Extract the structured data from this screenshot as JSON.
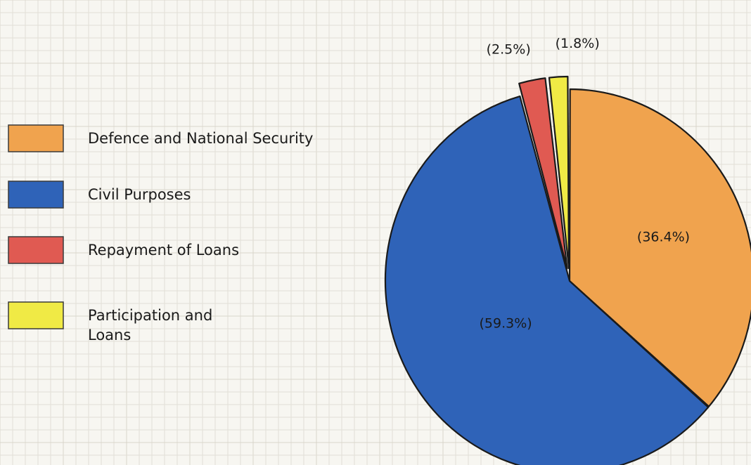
{
  "chart_data": {
    "type": "pie",
    "title": "",
    "categories": [
      "Defence and National Security",
      "Civil Purposes",
      "Repayment of Loans",
      "Participation and Loans"
    ],
    "legend_lines": [
      [
        "Defence and National Security"
      ],
      [
        "Civil Purposes"
      ],
      [
        "Repayment of Loans"
      ],
      [
        "Participation and",
        "Loans"
      ]
    ],
    "values": [
      36.4,
      59.3,
      2.5,
      1.8
    ],
    "value_labels": [
      "(36.4%)",
      "(59.3%)",
      "(2.5%)",
      "(1.8%)"
    ],
    "colors": [
      "#f0a34e",
      "#2f63b8",
      "#e05a52",
      "#f0ea45"
    ],
    "exploded": [
      false,
      false,
      true,
      true
    ],
    "legend_position": "left"
  }
}
